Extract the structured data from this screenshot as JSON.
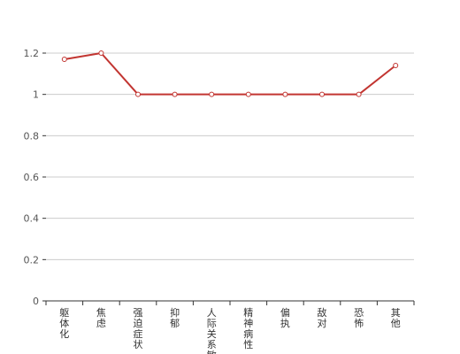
{
  "chart_data": {
    "type": "line",
    "title": "",
    "xlabel": "",
    "ylabel": "",
    "categories": [
      "躯体化",
      "焦虑",
      "强迫症状",
      "抑郁",
      "人际关系敏感",
      "精神病性",
      "偏执",
      "敌对",
      "恐怖",
      "其他"
    ],
    "series": [
      {
        "values": [
          1.17,
          1.2,
          1.0,
          1.0,
          1.0,
          1.0,
          1.0,
          1.0,
          1.0,
          1.14
        ]
      }
    ],
    "ylim": [
      0,
      1.2
    ],
    "yticks": [
      "0",
      "0.2",
      "0.4",
      "0.6",
      "0.8",
      "1",
      "1.2"
    ],
    "grid": true,
    "legend": "none",
    "colors": {
      "line": "#c23531",
      "grid": "#cccccc",
      "axis": "#333333",
      "point_fill": "#ffffff"
    }
  }
}
